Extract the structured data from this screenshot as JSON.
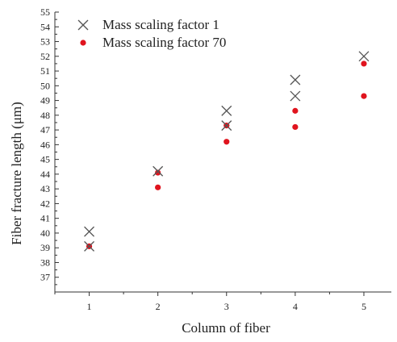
{
  "chart_data": {
    "type": "scatter",
    "xlabel": "Column of fiber",
    "ylabel": "Fiber fracture length (μm)",
    "xlim": [
      0.5,
      5.4
    ],
    "ylim": [
      36,
      55
    ],
    "x_ticks": [
      1,
      2,
      3,
      4,
      5
    ],
    "y_ticks": [
      37,
      38,
      39,
      40,
      41,
      42,
      43,
      44,
      45,
      46,
      47,
      48,
      49,
      50,
      51,
      52,
      53,
      54,
      55
    ],
    "legend_position": "top-left",
    "grid": false,
    "series": [
      {
        "name": "Mass scaling factor 1",
        "marker": "x",
        "color": "#555555",
        "points": [
          {
            "x": 1,
            "y": 40.1
          },
          {
            "x": 1,
            "y": 39.1
          },
          {
            "x": 2,
            "y": 44.2
          },
          {
            "x": 3,
            "y": 48.3
          },
          {
            "x": 3,
            "y": 47.3
          },
          {
            "x": 4,
            "y": 50.4
          },
          {
            "x": 4,
            "y": 49.3
          },
          {
            "x": 5,
            "y": 52.0
          }
        ]
      },
      {
        "name": "Mass scaling factor 70",
        "marker": "dot",
        "color": "#e0141e",
        "points": [
          {
            "x": 1,
            "y": 39.1
          },
          {
            "x": 2,
            "y": 44.1
          },
          {
            "x": 2,
            "y": 43.1
          },
          {
            "x": 3,
            "y": 47.3
          },
          {
            "x": 3,
            "y": 46.2
          },
          {
            "x": 4,
            "y": 48.3
          },
          {
            "x": 4,
            "y": 47.2
          },
          {
            "x": 5,
            "y": 51.5
          },
          {
            "x": 5,
            "y": 49.3
          }
        ]
      }
    ]
  }
}
